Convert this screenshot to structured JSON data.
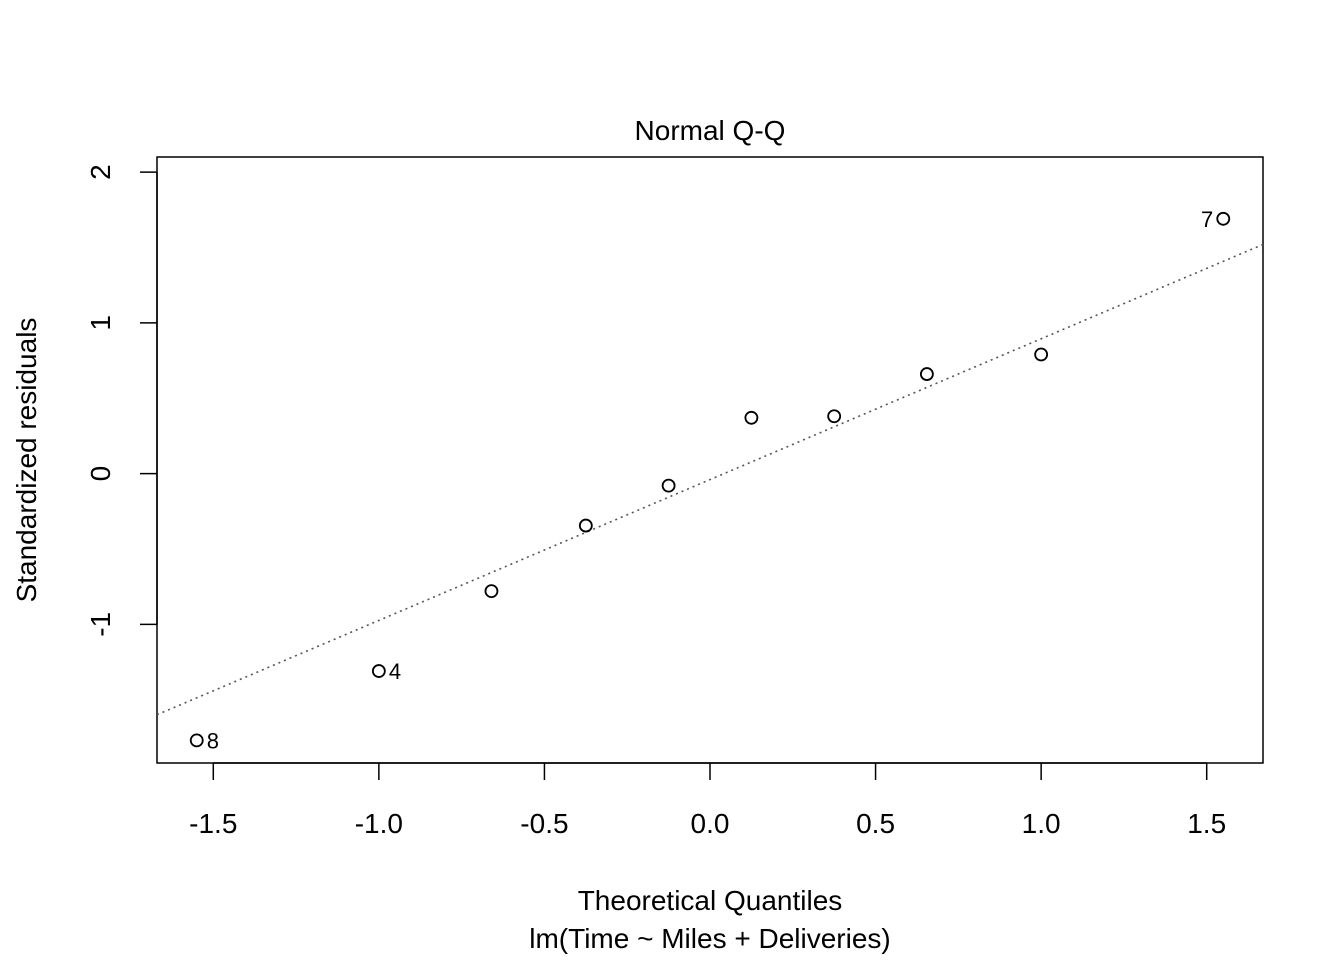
{
  "chart_data": {
    "type": "scatter",
    "title": "Normal Q-Q",
    "xlabel": "Theoretical Quantiles",
    "subtitle": "lm(Time ~ Miles + Deliveries)",
    "ylabel": "Standardized residuals",
    "xlim": [
      -1.67,
      1.67
    ],
    "ylim": [
      -1.92,
      2.1
    ],
    "x_ticks": [
      -1.5,
      -1.0,
      -0.5,
      0.0,
      0.5,
      1.0,
      1.5
    ],
    "x_tick_labels": [
      "-1.5",
      "-1.0",
      "-0.5",
      "0.0",
      "0.5",
      "1.0",
      "1.5"
    ],
    "y_ticks": [
      -1,
      0,
      1,
      2
    ],
    "y_tick_labels": [
      "-1",
      "0",
      "1",
      "2"
    ],
    "points": [
      {
        "x": -1.55,
        "y": -1.77,
        "label": "8"
      },
      {
        "x": -1.0,
        "y": -1.31,
        "label": "4"
      },
      {
        "x": -0.66,
        "y": -0.78,
        "label": ""
      },
      {
        "x": -0.375,
        "y": -0.345,
        "label": ""
      },
      {
        "x": -0.125,
        "y": -0.08,
        "label": ""
      },
      {
        "x": 0.125,
        "y": 0.37,
        "label": ""
      },
      {
        "x": 0.375,
        "y": 0.38,
        "label": ""
      },
      {
        "x": 0.655,
        "y": 0.66,
        "label": ""
      },
      {
        "x": 1.0,
        "y": 0.79,
        "label": ""
      },
      {
        "x": 1.55,
        "y": 1.69,
        "label": "7"
      }
    ],
    "reference_line": {
      "from": [
        -1.67,
        -1.6
      ],
      "to": [
        1.67,
        1.52
      ],
      "style": "dotted",
      "color": "#555555"
    },
    "grid": false,
    "legend": "none"
  }
}
